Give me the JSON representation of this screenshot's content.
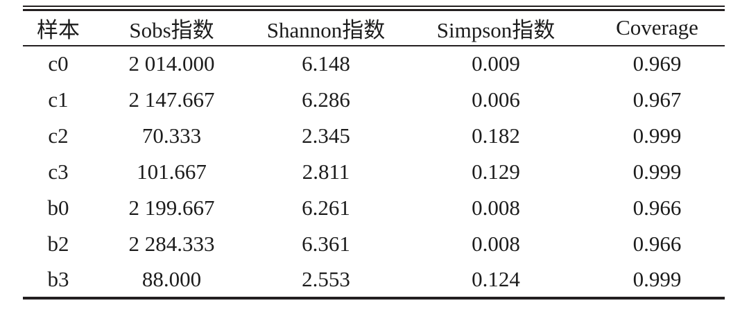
{
  "colors": {
    "background": "#ffffff",
    "text": "#1c1c1c",
    "rule": "#231f20"
  },
  "table": {
    "name": "alpha-diversity-indices",
    "columns": [
      "样本",
      "Sobs指数",
      "Shannon指数",
      "Simpson指数",
      "Coverage"
    ],
    "rows": [
      [
        "c0",
        "2 014.000",
        "6.148",
        "0.009",
        "0.969"
      ],
      [
        "c1",
        "2 147.667",
        "6.286",
        "0.006",
        "0.967"
      ],
      [
        "c2",
        "70.333",
        "2.345",
        "0.182",
        "0.999"
      ],
      [
        "c3",
        "101.667",
        "2.811",
        "0.129",
        "0.999"
      ],
      [
        "b0",
        "2 199.667",
        "6.261",
        "0.008",
        "0.966"
      ],
      [
        "b2",
        "2 284.333",
        "6.361",
        "0.008",
        "0.966"
      ],
      [
        "b3",
        "88.000",
        "2.553",
        "0.124",
        "0.999"
      ]
    ]
  }
}
